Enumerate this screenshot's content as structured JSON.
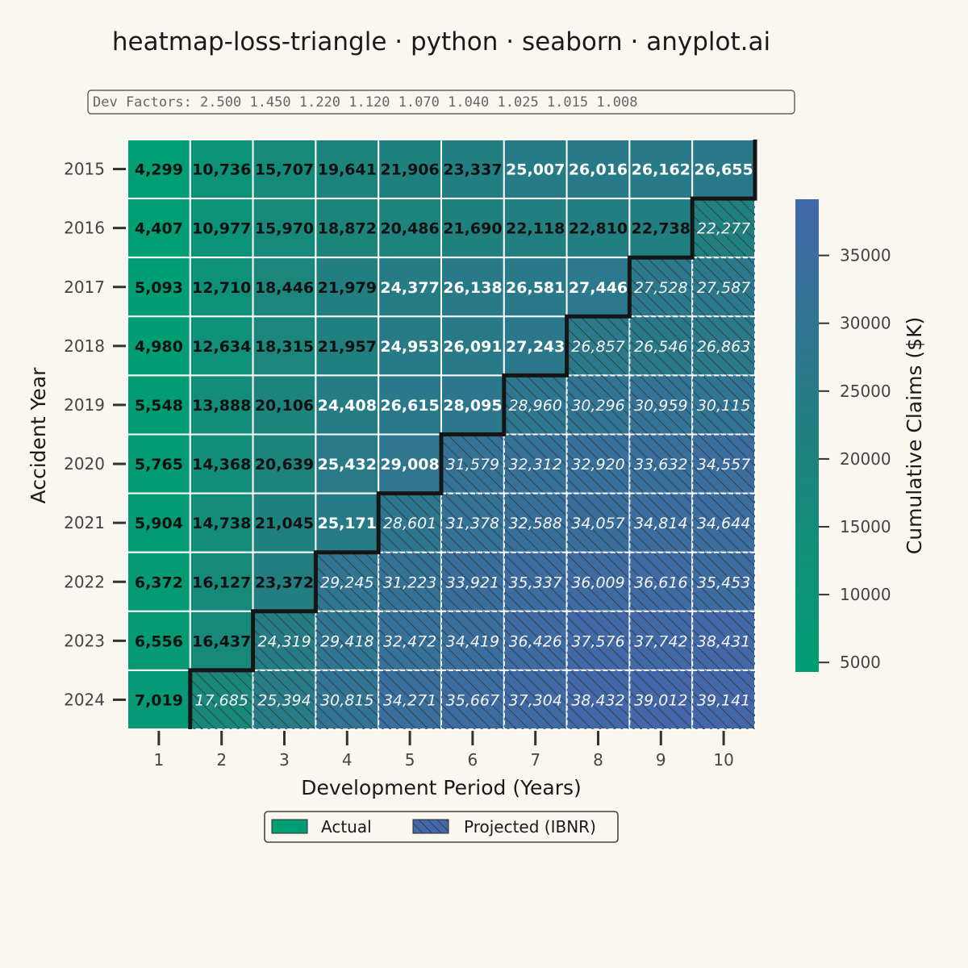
{
  "chart_data": {
    "type": "heatmap",
    "title": "heatmap-loss-triangle · python · seaborn · anyplot.ai",
    "factors_text": "Dev Factors: 2.500  1.450  1.220  1.120  1.070  1.040  1.025  1.015  1.008",
    "xlabel": "Development Period (Years)",
    "ylabel": "Accident Year",
    "x": [
      "1",
      "2",
      "3",
      "4",
      "5",
      "6",
      "7",
      "8",
      "9",
      "10"
    ],
    "y": [
      "2015",
      "2016",
      "2017",
      "2018",
      "2019",
      "2020",
      "2021",
      "2022",
      "2023",
      "2024"
    ],
    "values": [
      [
        4299,
        10736,
        15707,
        19641,
        21906,
        23337,
        25007,
        26016,
        26162,
        26655
      ],
      [
        4407,
        10977,
        15970,
        18872,
        20486,
        21690,
        22118,
        22810,
        22738,
        22277
      ],
      [
        5093,
        12710,
        18446,
        21979,
        24377,
        26138,
        26581,
        27446,
        27528,
        27587
      ],
      [
        4980,
        12634,
        18315,
        21957,
        24953,
        26091,
        27243,
        26857,
        26546,
        26863
      ],
      [
        5548,
        13888,
        20106,
        24408,
        26615,
        28095,
        28960,
        30296,
        30959,
        30115
      ],
      [
        5765,
        14368,
        20639,
        25432,
        29008,
        31579,
        32312,
        32920,
        33632,
        34557
      ],
      [
        5904,
        14738,
        21045,
        25171,
        28601,
        31378,
        32588,
        34057,
        34814,
        34644
      ],
      [
        6372,
        16127,
        23372,
        29245,
        31223,
        33921,
        35337,
        36009,
        36616,
        35453
      ],
      [
        6556,
        16437,
        24319,
        29418,
        32472,
        34419,
        36426,
        37576,
        37742,
        38431
      ],
      [
        7019,
        17685,
        25394,
        30815,
        34271,
        35667,
        37304,
        38432,
        39012,
        39141
      ]
    ],
    "labels": [
      [
        "4,299",
        "10,736",
        "15,707",
        "19,641",
        "21,906",
        "23,337",
        "25,007",
        "26,016",
        "26,162",
        "26,655"
      ],
      [
        "4,407",
        "10,977",
        "15,970",
        "18,872",
        "20,486",
        "21,690",
        "22,118",
        "22,810",
        "22,738",
        "22,277"
      ],
      [
        "5,093",
        "12,710",
        "18,446",
        "21,979",
        "24,377",
        "26,138",
        "26,581",
        "27,446",
        "27,528",
        "27,587"
      ],
      [
        "4,980",
        "12,634",
        "18,315",
        "21,957",
        "24,953",
        "26,091",
        "27,243",
        "26,857",
        "26,546",
        "26,863"
      ],
      [
        "5,548",
        "13,888",
        "20,106",
        "24,408",
        "26,615",
        "28,095",
        "28,960",
        "30,296",
        "30,959",
        "30,115"
      ],
      [
        "5,765",
        "14,368",
        "20,639",
        "25,432",
        "29,008",
        "31,579",
        "32,312",
        "32,920",
        "33,632",
        "34,557"
      ],
      [
        "5,904",
        "14,738",
        "21,045",
        "25,171",
        "28,601",
        "31,378",
        "32,588",
        "34,057",
        "34,814",
        "34,644"
      ],
      [
        "6,372",
        "16,127",
        "23,372",
        "29,245",
        "31,223",
        "33,921",
        "35,337",
        "36,009",
        "36,616",
        "35,453"
      ],
      [
        "6,556",
        "16,437",
        "24,319",
        "29,418",
        "32,472",
        "34,419",
        "36,426",
        "37,576",
        "37,742",
        "38,431"
      ],
      [
        "7,019",
        "17,685",
        "25,394",
        "30,815",
        "34,271",
        "35,667",
        "37,304",
        "38,432",
        "39,012",
        "39,141"
      ]
    ],
    "actual_periods_per_row": [
      10,
      9,
      8,
      7,
      6,
      5,
      4,
      3,
      2,
      1
    ],
    "colorbar": {
      "label": "Cumulative Claims ($K)",
      "range": [
        4299,
        39141
      ],
      "ticks": [
        5000,
        10000,
        15000,
        20000,
        25000,
        30000,
        35000
      ],
      "color_low": "#009e73",
      "color_high": "#4467a9"
    },
    "legend": [
      {
        "label": "Actual",
        "color": "#009e73",
        "hatched": false
      },
      {
        "label": "Projected (IBNR)",
        "color": "#4467a9",
        "hatched": true
      }
    ],
    "legend_placement": "bottom-center",
    "grid": false
  }
}
